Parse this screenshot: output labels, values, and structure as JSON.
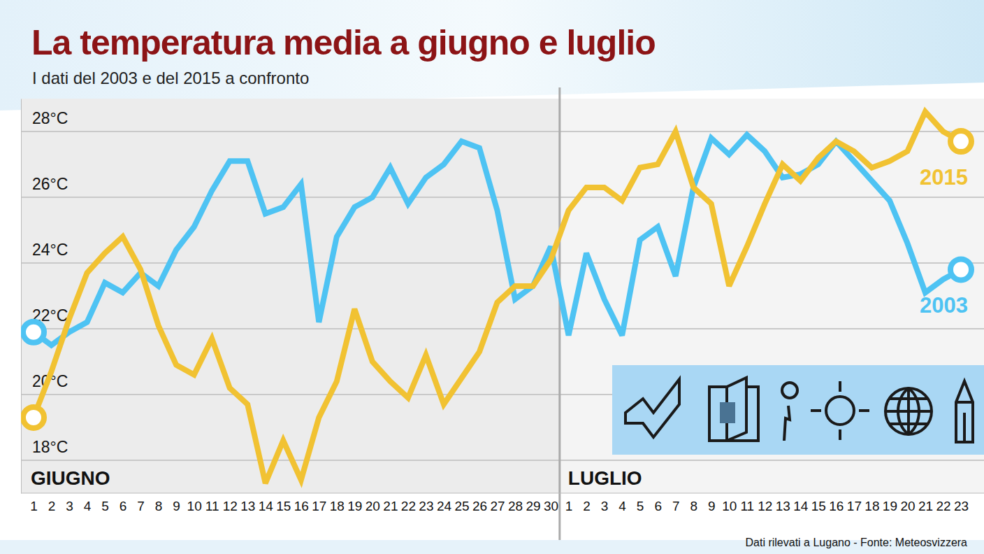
{
  "chart_data": {
    "type": "line",
    "title": "La temperatura media a giugno e luglio",
    "subtitle": "I dati del 2003 e del 2015 a confronto",
    "categories": [
      "1",
      "2",
      "3",
      "4",
      "5",
      "6",
      "7",
      "8",
      "9",
      "10",
      "11",
      "12",
      "13",
      "14",
      "15",
      "16",
      "17",
      "18",
      "19",
      "20",
      "21",
      "22",
      "23",
      "24",
      "25",
      "26",
      "27",
      "28",
      "29",
      "30",
      "1",
      "2",
      "3",
      "4",
      "5",
      "6",
      "7",
      "8",
      "9",
      "10",
      "11",
      "12",
      "13",
      "14",
      "15",
      "16",
      "17",
      "18",
      "19",
      "20",
      "21",
      "22",
      "23"
    ],
    "series": [
      {
        "name": "2003",
        "color": "#4ec3f3",
        "values": [
          21.9,
          21.5,
          21.9,
          22.2,
          23.4,
          23.1,
          23.7,
          23.3,
          24.4,
          25.1,
          26.2,
          27.1,
          27.1,
          25.5,
          25.7,
          26.4,
          22.2,
          24.8,
          25.7,
          26.0,
          26.9,
          25.8,
          26.6,
          27.0,
          27.7,
          27.5,
          25.6,
          22.9,
          23.3,
          24.5,
          21.8,
          24.3,
          22.9,
          21.8,
          24.7,
          25.1,
          23.6,
          26.3,
          27.8,
          27.3,
          27.9,
          27.4,
          26.6,
          26.7,
          27.0,
          27.7,
          27.1,
          26.5,
          25.9,
          24.6,
          23.1,
          23.5,
          23.8
        ]
      },
      {
        "name": "2015",
        "color": "#f1c232",
        "values": [
          19.3,
          20.7,
          22.3,
          23.7,
          24.3,
          24.8,
          23.8,
          22.1,
          20.9,
          20.6,
          21.7,
          20.2,
          19.7,
          17.3,
          18.6,
          17.4,
          19.3,
          20.4,
          22.6,
          21.0,
          20.4,
          19.9,
          21.2,
          19.7,
          20.5,
          21.3,
          22.8,
          23.3,
          23.3,
          24.1,
          25.6,
          26.3,
          26.3,
          25.9,
          26.9,
          27.0,
          28.0,
          26.3,
          25.8,
          23.3,
          24.5,
          25.8,
          27.0,
          26.5,
          27.2,
          27.7,
          27.4,
          26.9,
          27.1,
          27.4,
          28.6,
          28.0,
          27.7
        ]
      }
    ],
    "ylim": [
      17,
      29
    ],
    "yticks": [
      {
        "value": 18,
        "label": "18°C"
      },
      {
        "value": 20,
        "label": "20°C"
      },
      {
        "value": 22,
        "label": "22°C"
      },
      {
        "value": 24,
        "label": "24°C"
      },
      {
        "value": 26,
        "label": "26°C"
      },
      {
        "value": 28,
        "label": "28°C"
      }
    ],
    "grid": true,
    "annotations": [
      "GIUGNO",
      "LUGLIO"
    ],
    "source": "Dati rilevati a Lugano - Fonte: Meteosvizzera"
  }
}
